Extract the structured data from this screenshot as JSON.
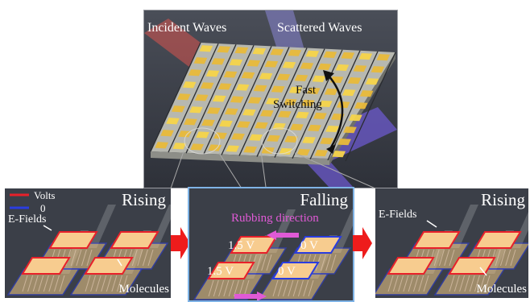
{
  "top_panel": {
    "incident_label": "Incident Waves",
    "scattered_label": "Scattered Waves",
    "switch_label_line1": "Fast",
    "switch_label_line2": "Switching"
  },
  "panel_rising_left": {
    "title": "Rising",
    "legend_volts": "Volts",
    "legend_zero": "0",
    "efields_label": "E-Fields",
    "molecules_label": "Molecules"
  },
  "panel_falling": {
    "title": "Falling",
    "rubbing_label": "Rubbing direction",
    "v_top_left": "1.5 V",
    "v_top_right": "0 V",
    "v_bottom_left": "1.5 V",
    "v_bottom_right": "0 V"
  },
  "panel_rising_right": {
    "title": "Rising",
    "efields_label": "E-Fields",
    "molecules_label": "Molecules"
  },
  "colors": {
    "panel_bg": "#3b3f48",
    "volts_line": "#e8202a",
    "zero_line": "#2a3de0",
    "rubbing": "#e05ad6",
    "arrow": "#ee1c1c",
    "tile": "#f2c14e",
    "pad": "#f0c987"
  }
}
